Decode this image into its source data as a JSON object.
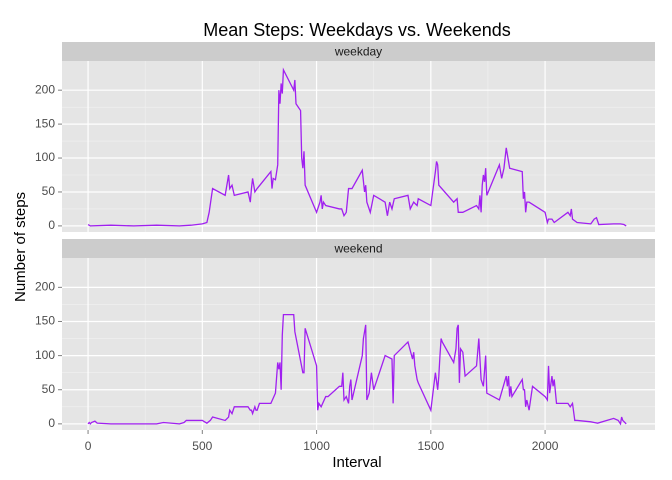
{
  "chart_data": {
    "type": "line",
    "title": "Mean Steps: Weekdays vs. Weekends",
    "xlabel": "Interval",
    "ylabel": "Number of steps",
    "xlim": [
      -114,
      2481
    ],
    "xticks": [
      0,
      500,
      1000,
      1500,
      2000
    ],
    "ylim": [
      -9,
      243
    ],
    "yticks": [
      0,
      50,
      100,
      150,
      200
    ],
    "grid": true,
    "series": [
      {
        "name": "weekday",
        "color": "#a020f0",
        "x": [
          0,
          10,
          100,
          200,
          300,
          400,
          450,
          500,
          520,
          530,
          545,
          600,
          610,
          615,
          620,
          630,
          640,
          700,
          710,
          715,
          720,
          730,
          740,
          800,
          805,
          810,
          820,
          830,
          835,
          840,
          845,
          850,
          855,
          900,
          905,
          910,
          930,
          935,
          940,
          945,
          950,
          1000,
          1015,
          1020,
          1025,
          1030,
          1040,
          1100,
          1110,
          1120,
          1130,
          1140,
          1150,
          1155,
          1200,
          1210,
          1215,
          1220,
          1235,
          1250,
          1300,
          1310,
          1320,
          1330,
          1340,
          1400,
          1410,
          1425,
          1440,
          1445,
          1500,
          1520,
          1525,
          1530,
          1535,
          1600,
          1615,
          1620,
          1640,
          1700,
          1710,
          1715,
          1720,
          1725,
          1730,
          1735,
          1740,
          1745,
          1800,
          1810,
          1820,
          1830,
          1845,
          1900,
          1905,
          1910,
          1915,
          1920,
          1930,
          2000,
          2010,
          2015,
          2030,
          2040,
          2100,
          2110,
          2115,
          2120,
          2140,
          2200,
          2215,
          2225,
          2235,
          2300,
          2330,
          2345,
          2355
        ],
        "values": [
          2,
          0,
          1,
          0,
          1,
          0,
          1,
          3,
          5,
          20,
          55,
          45,
          65,
          75,
          55,
          60,
          45,
          50,
          35,
          55,
          70,
          50,
          55,
          80,
          55,
          70,
          68,
          90,
          200,
          180,
          210,
          195,
          230,
          200,
          215,
          180,
          170,
          100,
          85,
          110,
          60,
          20,
          35,
          45,
          25,
          35,
          30,
          25,
          25,
          15,
          20,
          55,
          55,
          55,
          82,
          50,
          60,
          35,
          20,
          45,
          35,
          15,
          35,
          25,
          40,
          45,
          25,
          35,
          30,
          40,
          30,
          80,
          95,
          90,
          60,
          35,
          40,
          20,
          20,
          30,
          25,
          45,
          20,
          60,
          75,
          65,
          85,
          45,
          90,
          70,
          85,
          115,
          85,
          80,
          40,
          50,
          20,
          35,
          35,
          20,
          5,
          10,
          10,
          5,
          20,
          15,
          25,
          10,
          5,
          3,
          10,
          12,
          2,
          3,
          3,
          2,
          0
        ]
      },
      {
        "name": "weekend",
        "color": "#a020f0",
        "x": [
          0,
          5,
          10,
          15,
          30,
          40,
          100,
          200,
          300,
          330,
          400,
          420,
          430,
          500,
          520,
          535,
          545,
          600,
          615,
          620,
          630,
          640,
          700,
          710,
          715,
          720,
          730,
          735,
          740,
          750,
          800,
          820,
          830,
          835,
          840,
          845,
          850,
          855,
          900,
          905,
          940,
          945,
          950,
          1000,
          1005,
          1010,
          1020,
          1040,
          1050,
          1100,
          1110,
          1115,
          1120,
          1130,
          1140,
          1145,
          1150,
          1155,
          1200,
          1205,
          1215,
          1220,
          1230,
          1240,
          1250,
          1300,
          1330,
          1335,
          1340,
          1400,
          1420,
          1425,
          1430,
          1440,
          1445,
          1500,
          1520,
          1530,
          1535,
          1540,
          1545,
          1550,
          1600,
          1610,
          1615,
          1620,
          1625,
          1630,
          1640,
          1650,
          1700,
          1710,
          1720,
          1730,
          1740,
          1745,
          1800,
          1830,
          1835,
          1840,
          1845,
          1850,
          1855,
          1900,
          1905,
          1910,
          1915,
          1920,
          1930,
          1945,
          2000,
          2010,
          2015,
          2020,
          2030,
          2035,
          2040,
          2050,
          2100,
          2110,
          2120,
          2130,
          2140,
          2200,
          2215,
          2230,
          2300,
          2320,
          2330,
          2335,
          2340,
          2355
        ],
        "values": [
          0,
          2,
          0,
          2,
          4,
          1,
          0,
          0,
          0,
          2,
          0,
          2,
          5,
          5,
          1,
          5,
          10,
          5,
          10,
          20,
          15,
          25,
          25,
          20,
          20,
          15,
          25,
          20,
          20,
          30,
          30,
          45,
          90,
          80,
          90,
          50,
          130,
          160,
          160,
          135,
          75,
          75,
          140,
          85,
          20,
          30,
          25,
          40,
          40,
          55,
          55,
          75,
          35,
          40,
          30,
          55,
          65,
          35,
          100,
          125,
          145,
          35,
          45,
          75,
          50,
          100,
          95,
          30,
          100,
          120,
          95,
          105,
          85,
          65,
          60,
          20,
          75,
          50,
          70,
          100,
          125,
          120,
          90,
          110,
          140,
          145,
          60,
          110,
          105,
          70,
          85,
          125,
          65,
          55,
          100,
          45,
          35,
          70,
          55,
          70,
          40,
          55,
          40,
          65,
          50,
          50,
          25,
          35,
          20,
          55,
          40,
          35,
          85,
          45,
          70,
          55,
          65,
          30,
          30,
          25,
          30,
          5,
          5,
          3,
          2,
          1,
          8,
          5,
          0,
          10,
          5,
          0
        ]
      }
    ]
  }
}
